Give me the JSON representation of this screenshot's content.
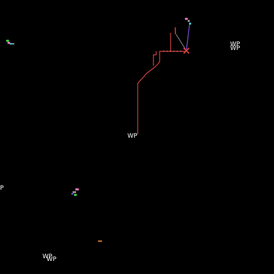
{
  "waypoint_labels": {
    "wp_1": "WP",
    "wp_2": "WP",
    "wp_3": "WP",
    "wp_4": "P",
    "wp_5": "WP",
    "wp_6": "WP"
  },
  "colors": {
    "background": "#000000",
    "route": "#d94040",
    "vector_gray": "#8a8a8a",
    "vector_purple": "#7a4fd0",
    "marker_pink": "#e070b0",
    "marker_cyan": "#40c0d0",
    "marker_green": "#40c040",
    "marker_orange": "#c07030",
    "label": "#ffffff"
  }
}
